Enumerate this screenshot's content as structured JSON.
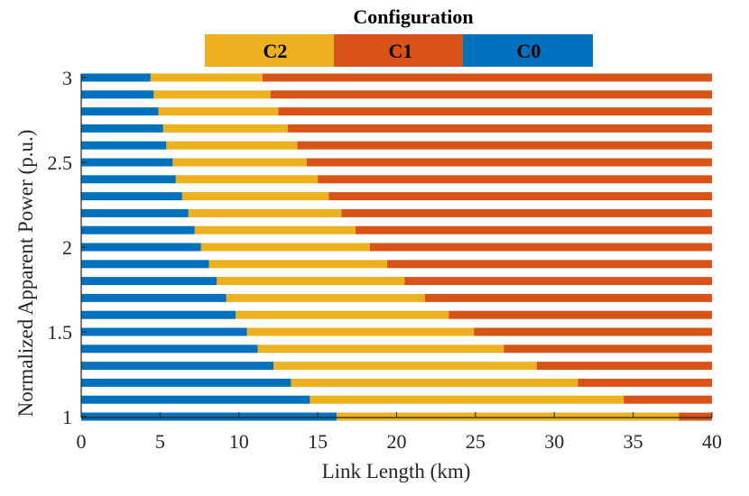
{
  "chart_data": {
    "type": "bar",
    "orientation": "horizontal",
    "stacked": true,
    "xlabel": "Link Length (km)",
    "ylabel": "Normalized Apparent Power (p.u.)",
    "xlim": [
      0,
      40
    ],
    "ylim": [
      1,
      3
    ],
    "x_ticks": [
      "0",
      "5",
      "10",
      "15",
      "20",
      "25",
      "30",
      "35",
      "40"
    ],
    "y_ticks": [
      "1",
      "1.5",
      "2",
      "2.5",
      "3"
    ],
    "grid": false,
    "legend": {
      "title": "Configuration",
      "placement": "top-center",
      "entries": [
        "C2",
        "C1",
        "C0"
      ]
    },
    "colors": {
      "C0": "#0072BD",
      "C1": "#D95319",
      "C2": "#EDB120"
    },
    "y": [
      1.0,
      1.1,
      1.2,
      1.3,
      1.4,
      1.5,
      1.6,
      1.7,
      1.8,
      1.9,
      2.0,
      2.1,
      2.2,
      2.3,
      2.4,
      2.5,
      2.6,
      2.7,
      2.8,
      2.9,
      3.0
    ],
    "c0_end": [
      16.2,
      14.5,
      13.3,
      12.2,
      11.2,
      10.5,
      9.8,
      9.2,
      8.6,
      8.1,
      7.6,
      7.2,
      6.8,
      6.4,
      6.0,
      5.8,
      5.4,
      5.2,
      4.9,
      4.6,
      4.4
    ],
    "c2_end": [
      37.9,
      34.4,
      31.5,
      28.9,
      26.8,
      24.9,
      23.3,
      21.8,
      20.5,
      19.4,
      18.3,
      17.4,
      16.5,
      15.7,
      15.0,
      14.3,
      13.7,
      13.1,
      12.5,
      12.0,
      11.5
    ],
    "c1_end": [
      40,
      40,
      40,
      40,
      40,
      40,
      40,
      40,
      40,
      40,
      40,
      40,
      40,
      40,
      40,
      40,
      40,
      40,
      40,
      40,
      40
    ]
  }
}
